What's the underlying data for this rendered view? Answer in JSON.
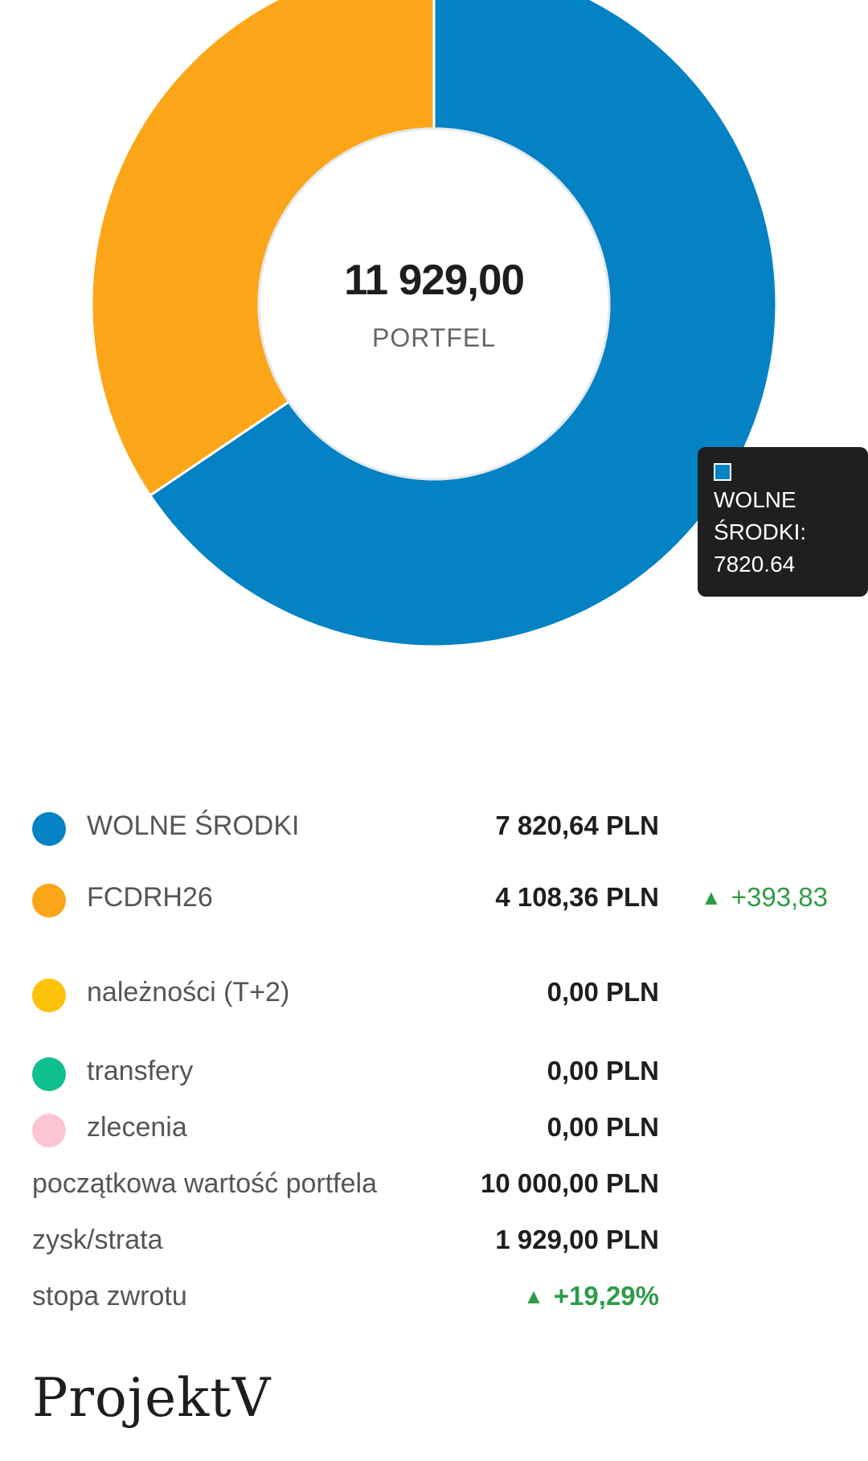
{
  "chart_data": {
    "type": "pie",
    "categories": [
      "WOLNE ŚRODKI",
      "FCDRH26"
    ],
    "values": [
      7820.64,
      4108.36
    ],
    "colors": [
      "#0482c3",
      "#fba619"
    ],
    "center_value": "11 929,00",
    "center_label": "PORTFEL"
  },
  "tooltip": {
    "line1": "WOLNE",
    "line2": "ŚRODKI:",
    "line3": "7820.64"
  },
  "legend": [
    {
      "label": "WOLNE ŚRODKI",
      "value": "7 820,64 PLN",
      "color": "#0482c3"
    },
    {
      "label": "FCDRH26",
      "value": "4 108,36 PLN",
      "color": "#fba619",
      "change_arrow": "▲",
      "change": "+393,83"
    },
    {
      "label": "należności (T+2)",
      "value": "0,00 PLN",
      "color": "#fdc20a"
    },
    {
      "label": "transfery",
      "value": "0,00 PLN",
      "color": "#0fbf8f"
    },
    {
      "label": "zlecenia",
      "value": "0,00 PLN",
      "color": "#fdc5d3"
    }
  ],
  "summary": [
    {
      "label": "początkowa wartość portfela",
      "value": "10 000,00 PLN"
    },
    {
      "label": "zysk/strata",
      "value": "1 929,00 PLN"
    },
    {
      "label": "stopa zwrotu",
      "arrow": "▲",
      "value": "+19,29%"
    }
  ],
  "brand": "ProjektV"
}
